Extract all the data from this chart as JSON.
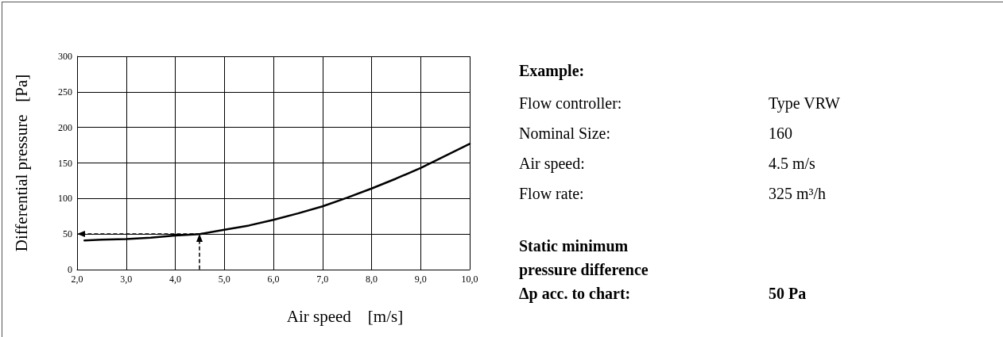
{
  "chart_data": [
    {
      "type": "line",
      "xlabel": "Air speed    [m/s]",
      "ylabel": "Differential pressure   [Pa]",
      "xlim": [
        2,
        10
      ],
      "xticks": [
        {
          "value": 2,
          "label": "2,0"
        },
        {
          "value": 3,
          "label": "3,0"
        },
        {
          "value": 4,
          "label": "4,0"
        },
        {
          "value": 5,
          "label": "5,0"
        },
        {
          "value": 6,
          "label": "6,0"
        },
        {
          "value": 7,
          "label": "7,0"
        },
        {
          "value": 8,
          "label": "8,0"
        },
        {
          "value": 9,
          "label": "9,0"
        },
        {
          "value": 10,
          "label": "10,0"
        }
      ],
      "ylim": [
        0,
        300
      ],
      "yticks": [
        0,
        50,
        100,
        150,
        200,
        250,
        300
      ],
      "grid": true,
      "marker": "none",
      "series": [
        {
          "color": "#000000",
          "x": [
            2.15,
            2.5,
            3,
            3.5,
            4,
            4.5,
            5,
            5.5,
            6,
            6.5,
            7,
            7.5,
            8,
            8.5,
            9,
            9.5,
            10
          ],
          "values": [
            41,
            42,
            43,
            45,
            48,
            50,
            56,
            62,
            70,
            79,
            89,
            101,
            114,
            128,
            143,
            160,
            177
          ]
        }
      ]
    },
    {
      "type": "other",
      "title": "Example:",
      "annotations": [
        "Flow controller:",
        "Type VRW",
        "Nominal Size:",
        "160",
        "Air speed:",
        "4.5 m/s",
        "Flow rate:",
        "325 m³/h",
        "Static minimum pressure difference Δp acc. to chart:",
        "50 Pa"
      ]
    }
  ]
}
